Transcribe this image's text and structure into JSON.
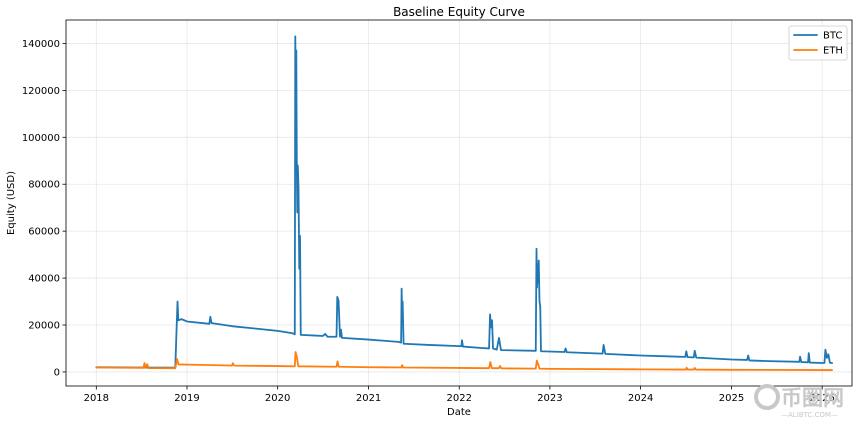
{
  "chart_data": {
    "type": "line",
    "title": "Baseline Equity Curve",
    "xlabel": "Date",
    "ylabel": "Equity (USD)",
    "xlim": [
      "2017-09-01",
      "2026-05-01"
    ],
    "ylim": [
      -6000,
      150000
    ],
    "grid": true,
    "legend_position": "top-right",
    "x_ticks": [
      "2018",
      "2019",
      "2020",
      "2021",
      "2022",
      "2023",
      "2024",
      "2025",
      "2026"
    ],
    "y_ticks": [
      0,
      20000,
      40000,
      60000,
      80000,
      100000,
      120000,
      140000
    ],
    "y_tick_labels": [
      "0",
      "20000",
      "40000",
      "60000",
      "80000",
      "100000",
      "120000",
      "140000"
    ],
    "series": [
      {
        "name": "BTC",
        "color": "#1f77b4",
        "points": [
          [
            "2018-01-01",
            2000
          ],
          [
            "2018-06-01",
            1900
          ],
          [
            "2018-11-15",
            1800
          ],
          [
            "2018-11-20",
            18000
          ],
          [
            "2018-11-24",
            30000
          ],
          [
            "2018-11-27",
            22000
          ],
          [
            "2018-12-10",
            22500
          ],
          [
            "2019-01-01",
            21500
          ],
          [
            "2019-04-01",
            20500
          ],
          [
            "2019-04-05",
            23500
          ],
          [
            "2019-04-10",
            20800
          ],
          [
            "2019-07-01",
            19500
          ],
          [
            "2019-10-01",
            18500
          ],
          [
            "2020-01-01",
            17500
          ],
          [
            "2020-03-01",
            16500
          ],
          [
            "2020-03-10",
            16000
          ],
          [
            "2020-03-12",
            143000
          ],
          [
            "2020-03-14",
            120000
          ],
          [
            "2020-03-16",
            137000
          ],
          [
            "2020-03-18",
            90000
          ],
          [
            "2020-03-20",
            68000
          ],
          [
            "2020-03-22",
            88000
          ],
          [
            "2020-03-25",
            78000
          ],
          [
            "2020-03-28",
            44000
          ],
          [
            "2020-03-31",
            58000
          ],
          [
            "2020-04-03",
            15800
          ],
          [
            "2020-06-01",
            15500
          ],
          [
            "2020-07-01",
            15300
          ],
          [
            "2020-07-10",
            16200
          ],
          [
            "2020-07-20",
            15000
          ],
          [
            "2020-08-25",
            15000
          ],
          [
            "2020-08-28",
            32000
          ],
          [
            "2020-09-02",
            30500
          ],
          [
            "2020-09-08",
            15000
          ],
          [
            "2020-09-12",
            18000
          ],
          [
            "2020-09-16",
            14500
          ],
          [
            "2021-01-01",
            13800
          ],
          [
            "2021-05-01",
            12800
          ],
          [
            "2021-05-12",
            12500
          ],
          [
            "2021-05-14",
            35500
          ],
          [
            "2021-05-16",
            24000
          ],
          [
            "2021-05-18",
            30000
          ],
          [
            "2021-05-22",
            12000
          ],
          [
            "2021-09-01",
            11500
          ],
          [
            "2022-01-01",
            11000
          ],
          [
            "2022-01-10",
            11000
          ],
          [
            "2022-01-12",
            13500
          ],
          [
            "2022-01-16",
            10800
          ],
          [
            "2022-04-01",
            10200
          ],
          [
            "2022-05-01",
            10000
          ],
          [
            "2022-05-05",
            24500
          ],
          [
            "2022-05-09",
            19000
          ],
          [
            "2022-05-13",
            22000
          ],
          [
            "2022-05-17",
            10000
          ],
          [
            "2022-06-01",
            9500
          ],
          [
            "2022-06-10",
            14500
          ],
          [
            "2022-06-18",
            9300
          ],
          [
            "2022-11-05",
            9000
          ],
          [
            "2022-11-08",
            52500
          ],
          [
            "2022-11-10",
            36000
          ],
          [
            "2022-11-12",
            46000
          ],
          [
            "2022-11-14",
            38000
          ],
          [
            "2022-11-17",
            47500
          ],
          [
            "2022-11-20",
            30000
          ],
          [
            "2022-11-23",
            28000
          ],
          [
            "2022-11-26",
            8800
          ],
          [
            "2023-03-01",
            8500
          ],
          [
            "2023-03-05",
            10000
          ],
          [
            "2023-03-10",
            8400
          ],
          [
            "2023-08-01",
            7800
          ],
          [
            "2023-08-05",
            11500
          ],
          [
            "2023-08-12",
            7700
          ],
          [
            "2024-01-01",
            7000
          ],
          [
            "2024-06-01",
            6500
          ],
          [
            "2024-06-29",
            6400
          ],
          [
            "2024-07-03",
            8800
          ],
          [
            "2024-07-08",
            6300
          ],
          [
            "2024-08-02",
            6200
          ],
          [
            "2024-08-06",
            9000
          ],
          [
            "2024-08-12",
            6100
          ],
          [
            "2025-01-01",
            5300
          ],
          [
            "2025-03-05",
            5100
          ],
          [
            "2025-03-09",
            7000
          ],
          [
            "2025-03-14",
            4900
          ],
          [
            "2025-06-01",
            4600
          ],
          [
            "2025-10-01",
            4300
          ],
          [
            "2025-10-04",
            6500
          ],
          [
            "2025-10-09",
            4200
          ],
          [
            "2025-11-05",
            4100
          ],
          [
            "2025-11-08",
            8000
          ],
          [
            "2025-11-12",
            4000
          ],
          [
            "2026-01-01",
            3800
          ],
          [
            "2026-01-10",
            3800
          ],
          [
            "2026-01-14",
            9500
          ],
          [
            "2026-01-20",
            6000
          ],
          [
            "2026-01-26",
            7500
          ],
          [
            "2026-02-01",
            3900
          ],
          [
            "2026-02-10",
            3800
          ]
        ]
      },
      {
        "name": "ETH",
        "color": "#ff7f0e",
        "points": [
          [
            "2018-01-01",
            1900
          ],
          [
            "2018-05-01",
            1800
          ],
          [
            "2018-07-10",
            1750
          ],
          [
            "2018-07-14",
            3800
          ],
          [
            "2018-07-18",
            1700
          ],
          [
            "2018-07-25",
            3300
          ],
          [
            "2018-07-30",
            1650
          ],
          [
            "2018-11-15",
            1600
          ],
          [
            "2018-11-22",
            5500
          ],
          [
            "2018-11-28",
            3200
          ],
          [
            "2019-01-01",
            3100
          ],
          [
            "2019-06-01",
            2800
          ],
          [
            "2019-07-01",
            2700
          ],
          [
            "2019-07-05",
            3700
          ],
          [
            "2019-07-10",
            2700
          ],
          [
            "2020-01-01",
            2500
          ],
          [
            "2020-03-10",
            2400
          ],
          [
            "2020-03-13",
            8500
          ],
          [
            "2020-03-18",
            6500
          ],
          [
            "2020-03-24",
            2400
          ],
          [
            "2020-08-25",
            2200
          ],
          [
            "2020-08-29",
            4500
          ],
          [
            "2020-09-03",
            2200
          ],
          [
            "2021-01-01",
            2000
          ],
          [
            "2021-05-13",
            1900
          ],
          [
            "2021-05-16",
            2900
          ],
          [
            "2021-05-20",
            1900
          ],
          [
            "2022-01-01",
            1700
          ],
          [
            "2022-05-01",
            1600
          ],
          [
            "2022-05-06",
            4200
          ],
          [
            "2022-05-12",
            1600
          ],
          [
            "2022-06-10",
            1600
          ],
          [
            "2022-06-14",
            2500
          ],
          [
            "2022-06-20",
            1500
          ],
          [
            "2022-11-05",
            1400
          ],
          [
            "2022-11-09",
            4800
          ],
          [
            "2022-11-14",
            3500
          ],
          [
            "2022-11-20",
            1400
          ],
          [
            "2023-01-01",
            1300
          ],
          [
            "2024-01-01",
            1100
          ],
          [
            "2024-07-01",
            1000
          ],
          [
            "2024-07-04",
            1800
          ],
          [
            "2024-07-08",
            1000
          ],
          [
            "2024-08-02",
            1000
          ],
          [
            "2024-08-06",
            1700
          ],
          [
            "2024-08-10",
            1000
          ],
          [
            "2025-01-01",
            900
          ],
          [
            "2026-02-10",
            800
          ]
        ]
      }
    ]
  },
  "watermark": {
    "logo_text": "币圈网",
    "site_text": "—ALIBTC.COM—"
  }
}
